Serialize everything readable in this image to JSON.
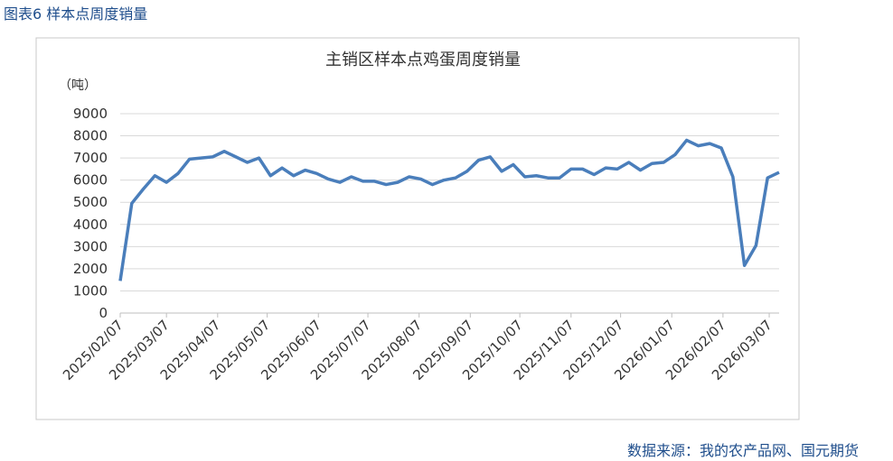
{
  "header": "图表6  样本点周度销量",
  "source": "数据来源：我的农产品网、国元期货",
  "chart_data": {
    "type": "line",
    "title": "主销区样本点鸡蛋周度销量",
    "y_label": "（吨）",
    "x": [
      "2025/02/07",
      "2025/02/14",
      "2025/02/21",
      "2025/02/28",
      "2025/03/07",
      "2025/03/14",
      "2025/03/21",
      "2025/03/28",
      "2025/04/04",
      "2025/04/11",
      "2025/04/18",
      "2025/04/25",
      "2025/05/02",
      "2025/05/09",
      "2025/05/16",
      "2025/05/23",
      "2025/05/30",
      "2025/06/06",
      "2025/06/13",
      "2025/06/20",
      "2025/06/27",
      "2025/07/04",
      "2025/07/11",
      "2025/07/18",
      "2025/07/25",
      "2025/08/01",
      "2025/08/08",
      "2025/08/15",
      "2025/08/22",
      "2025/08/29",
      "2025/09/05",
      "2025/09/12",
      "2025/09/19",
      "2025/09/26",
      "2025/10/03",
      "2025/10/10",
      "2025/10/17",
      "2025/10/24",
      "2025/10/31",
      "2025/11/07",
      "2025/11/14",
      "2025/11/21",
      "2025/11/28",
      "2025/12/05",
      "2025/12/12",
      "2025/12/19",
      "2025/12/26",
      "2026/01/02",
      "2026/01/09",
      "2026/01/16",
      "2026/01/23",
      "2026/01/30",
      "2026/02/06",
      "2026/02/13",
      "2026/02/20",
      "2026/02/27",
      "2026/03/06",
      "2026/03/13"
    ],
    "series": [
      {
        "color": "#4a7ebb",
        "values": [
          1450,
          4950,
          5600,
          6200,
          5900,
          6300,
          6950,
          7000,
          7050,
          7300,
          7050,
          6800,
          7000,
          6200,
          6550,
          6200,
          6450,
          6300,
          6050,
          5900,
          6150,
          5950,
          5950,
          5800,
          5900,
          6150,
          6050,
          5800,
          6000,
          6100,
          6400,
          6900,
          7050,
          6400,
          6700,
          6150,
          6200,
          6100,
          6100,
          6500,
          6500,
          6250,
          6550,
          6500,
          6800,
          6450,
          6750,
          6800,
          7150,
          7800,
          7550,
          7650,
          7450,
          6150,
          2150,
          3050,
          6100,
          6350
        ]
      }
    ],
    "xlim": [
      "2025/02/07",
      "2026/03/13"
    ],
    "xticks": [
      "2025/02/07",
      "2025/03/07",
      "2025/04/07",
      "2025/05/07",
      "2025/06/07",
      "2025/07/07",
      "2025/08/07",
      "2025/09/07",
      "2025/10/07",
      "2025/11/07",
      "2025/12/07",
      "2026/01/07",
      "2026/02/07",
      "2026/03/07"
    ],
    "ylim": [
      0,
      9000
    ],
    "yticks": [
      0,
      1000,
      2000,
      3000,
      4000,
      5000,
      6000,
      7000,
      8000,
      9000
    ],
    "grid": true
  }
}
